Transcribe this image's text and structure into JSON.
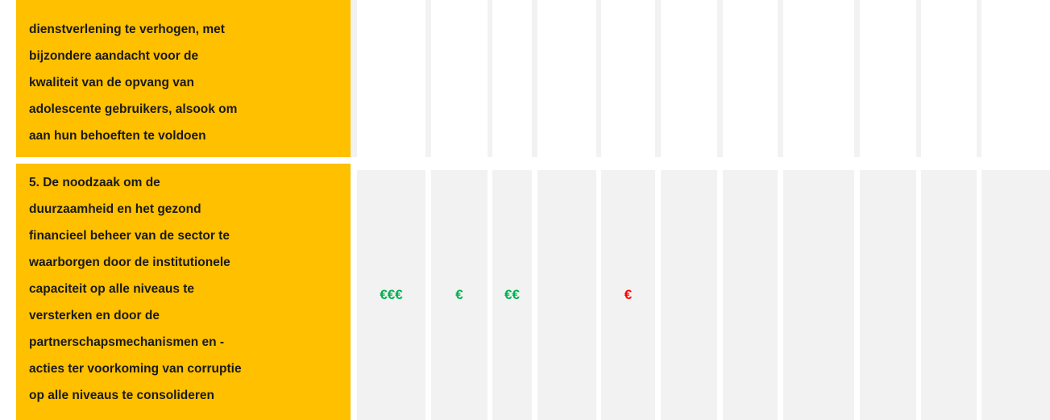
{
  "table": {
    "rows": [
      {
        "label": [
          "dienstverlening te verhogen, met",
          "bijzondere aandacht voor de",
          "kwaliteit van de opvang van",
          "adolescente gebruikers, alsook om",
          "aan hun behoeften te voldoen"
        ],
        "cells": [
          null,
          null,
          null,
          null,
          null,
          null,
          null,
          null,
          null,
          null,
          null
        ]
      },
      {
        "label": [
          "5. De noodzaak om de",
          "duurzaamheid en het gezond",
          "financieel beheer van de sector te",
          "waarborgen door de institutionele",
          "capaciteit op alle niveaus te",
          "versterken en door de",
          "partnerschapsmechanismen en -",
          "acties ter voorkoming van corruptie",
          "op alle niveaus te consolideren"
        ],
        "cells": [
          {
            "text": "€€€",
            "color": "#00b050"
          },
          {
            "text": "€",
            "color": "#00b050"
          },
          {
            "text": "€€",
            "color": "#00b050"
          },
          null,
          {
            "text": "€",
            "color": "#ff0000"
          },
          null,
          null,
          null,
          null,
          null,
          null
        ]
      }
    ]
  }
}
